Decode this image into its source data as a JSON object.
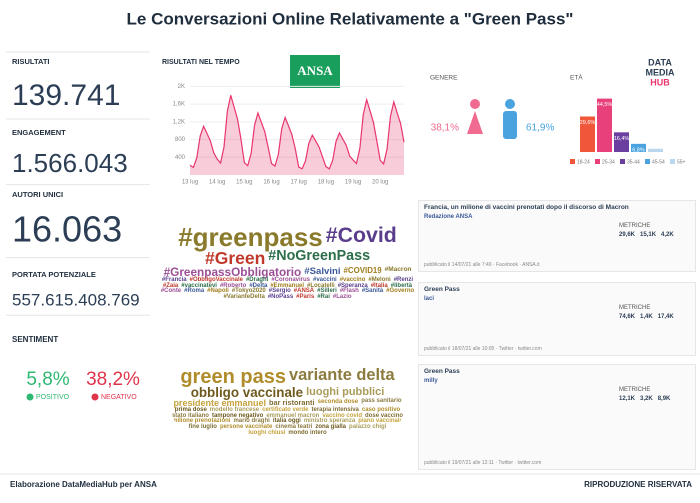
{
  "title": "Le Conversazioni Online Relativamente a \"Green Pass\"",
  "kpis": [
    {
      "label": "RISULTATI",
      "value": "139.741"
    },
    {
      "label": "ENGAGEMENT",
      "value": "1.566.043"
    },
    {
      "label": "AUTORI UNICI",
      "value": "16.063"
    },
    {
      "label": "PORTATA POTENZIALE",
      "value": "557.615.408.769"
    }
  ],
  "sentiment": {
    "label": "SENTIMENT",
    "positive": {
      "value": "5,8%",
      "label": "POSITIVO",
      "color": "#2eb872"
    },
    "negative": {
      "value": "38,2%",
      "label": "NEGATIVO",
      "color": "#e0344a"
    }
  },
  "logos": {
    "ansa": "ANSA",
    "dmh": [
      "DATA",
      "MEDIA",
      "HUB"
    ]
  },
  "chart_data": [
    {
      "type": "line",
      "title": "RISULTATI NEL TEMPO",
      "color": "#e8356d",
      "categories": [
        "13 lug",
        null,
        null,
        null,
        null,
        null,
        null,
        null,
        "14 lug",
        null,
        null,
        null,
        null,
        null,
        null,
        null,
        "15 lug",
        null,
        null,
        null,
        null,
        null,
        null,
        null,
        "16 lug",
        null,
        null,
        null,
        null,
        null,
        null,
        null,
        "17 lug",
        null,
        null,
        null,
        null,
        null,
        null,
        null,
        "18 lug",
        null,
        null,
        null,
        null,
        null,
        null,
        null,
        "19 lug",
        null,
        null,
        null,
        null,
        null,
        null,
        null,
        "20 lug",
        null,
        null,
        null,
        null,
        null,
        null,
        null
      ],
      "values": [
        220,
        170,
        390,
        880,
        1100,
        940,
        770,
        500,
        360,
        270,
        630,
        1440,
        1800,
        1530,
        1260,
        810,
        280,
        210,
        490,
        1120,
        1400,
        1190,
        980,
        630,
        260,
        200,
        460,
        1040,
        1300,
        1110,
        910,
        590,
        180,
        140,
        320,
        720,
        900,
        770,
        630,
        410,
        190,
        140,
        330,
        760,
        950,
        810,
        670,
        430,
        340,
        260,
        600,
        1360,
        1700,
        1450,
        1190,
        770,
        330,
        250,
        580,
        1320,
        1650,
        1400,
        1160,
        740
      ],
      "ylim": [
        0,
        2100
      ],
      "yticks": [
        400,
        800,
        {
          "value": 1200,
          "label": "1,2K"
        },
        {
          "value": 1600,
          "label": "1,6K"
        },
        {
          "value": 2000,
          "label": "2K"
        }
      ],
      "grid": true
    },
    {
      "type": "gender",
      "title": "GENERE",
      "values": [
        38.1,
        61.9
      ],
      "value_labels": [
        "38,1%",
        "61,9%"
      ],
      "colors": [
        "#f06b8f",
        "#4aa3df"
      ]
    },
    {
      "type": "bar",
      "title": "ETÀ",
      "categories": [
        "18-24",
        "25-34",
        "35-44",
        "45-54",
        "55+"
      ],
      "values": [
        29.6,
        44.5,
        16.4,
        6.8,
        2.7
      ],
      "value_labels": [
        "29,6%",
        "44,5%",
        "16,4%",
        "6,8%",
        null
      ],
      "colors": [
        "#f0573a",
        "#e8407a",
        "#6a3fa0",
        "#4aa3df",
        "#b9d8ef"
      ],
      "ylim": [
        0,
        50
      ]
    }
  ],
  "hashtags": {
    "colors": [
      "#8a7a2c",
      "#5a3e8c",
      "#c0392b",
      "#2c6e49",
      "#9b4f96",
      "#3b5998",
      "#a07d1c"
    ],
    "words": [
      "#greenpass",
      "#Covid",
      "#Green",
      "#NoGreenPass",
      "#GreenpassObbligatorio",
      "#Salvini",
      "#COVID19",
      "#Macron",
      "#Francia",
      "#ObbligoVaccinale",
      "#Draghi",
      "#Coronavirus",
      "#vaccini",
      "#vaccino",
      "#Meloni",
      "#Renzi",
      "#Zaia",
      "#vaccinatevi",
      "#Roberto",
      "#Delta",
      "#Emmanuel",
      "#Locatelli",
      "#Speranza",
      "#Italia",
      "#libertà",
      "#Conte",
      "#Roma",
      "#Napoli",
      "#Tokyo2020",
      "#Sergio",
      "#ANSA",
      "#Silleri",
      "#Flash",
      "#Sanità",
      "#Governo",
      "#VarianteDelta",
      "#NoPass",
      "#Paris",
      "#Rai",
      "#Lazio"
    ]
  },
  "words": {
    "colors": [
      "#b08d2a",
      "#8c7b3f",
      "#6e5a1e",
      "#a99c5a",
      "#c4a23a",
      "#7f6e34"
    ],
    "words": [
      "green pass",
      "variante delta",
      "obbligo vaccinale",
      "luoghi pubblici",
      "presidente emmanuel",
      "bar ristoranti",
      "seconda dose",
      "pass sanitario",
      "prima dose",
      "modello francese",
      "certificato verde",
      "terapia intensiva",
      "caso positivo",
      "stato italiano",
      "tampone negativo",
      "emmanuel macron",
      "vaccino covid",
      "dose vaccino",
      "milione prenotazioni",
      "mario draghi",
      "italia oggi",
      "ministro speranza",
      "piano vaccinale",
      "fine luglio",
      "persone vaccinate",
      "cinema teatri",
      "zona gialla",
      "palazzo chigi",
      "luoghi chiusi",
      "mondo intero"
    ]
  },
  "posts": [
    {
      "headline": "Francia, un milione di vaccini prenotati dopo il discorso di Macron",
      "author": "Redazione ANSA",
      "metrics_label": "METRICHE",
      "metrics": [
        "29,6K",
        "15,1K",
        "4,2K"
      ],
      "footer": "pubblicato il 14/07/21 alle 7:49 · Facebook · ANSA.it"
    },
    {
      "headline": "Green Pass",
      "author": "laci",
      "metrics_label": "METRICHE",
      "metrics": [
        "74,6K",
        "1,4K",
        "17,4K"
      ],
      "footer": "pubblicato il 18/07/21 alle 10:05 · Twitter · twitter.com"
    },
    {
      "headline": "Green Pass",
      "author": "milly",
      "metrics_label": "METRICHE",
      "metrics": [
        "12,1K",
        "3,2K",
        "8,9K"
      ],
      "footer": "pubblicato il 19/07/21 alle 12:11 · Twitter · twitter.com"
    }
  ],
  "footer": {
    "left": "Elaborazione DataMediaHub per ANSA",
    "right": "RIPRODUZIONE RISERVATA"
  }
}
